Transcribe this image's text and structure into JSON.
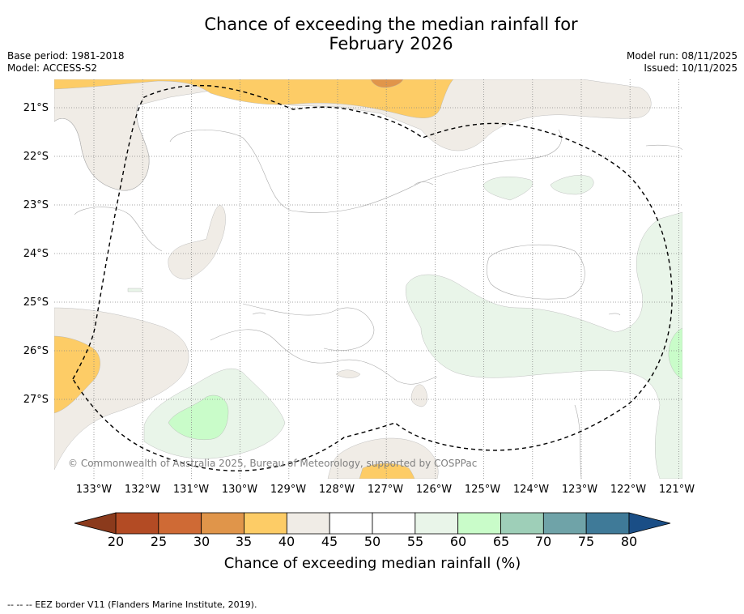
{
  "title": {
    "line1": "Chance of exceeding the median rainfall for",
    "line2": "February 2026"
  },
  "meta_left": {
    "base_period": "Base period: 1981-2018",
    "model": "Model: ACCESS-S2"
  },
  "meta_right": {
    "model_run": "Model run: 08/11/2025",
    "issued": "Issued: 10/11/2025"
  },
  "lat_labels": [
    "21°S",
    "22°S",
    "23°S",
    "24°S",
    "25°S",
    "26°S",
    "27°S"
  ],
  "lon_labels": [
    "133°W",
    "132°W",
    "131°W",
    "130°W",
    "129°W",
    "128°W",
    "127°W",
    "126°W",
    "125°W",
    "124°W",
    "123°W",
    "122°W",
    "121°W"
  ],
  "copyright": "© Commonwealth of Australia 2025, Bureau of Meteorology, supported by COSPPac",
  "colorbar": {
    "ticks": [
      "20",
      "25",
      "30",
      "35",
      "40",
      "45",
      "50",
      "55",
      "60",
      "65",
      "70",
      "75",
      "80"
    ],
    "colors": [
      "#b34b24",
      "#cf6a35",
      "#e0954a",
      "#fdcc66",
      "#f0ece6",
      "#ffffff",
      "#ffffff",
      "#e9f5e9",
      "#c9fcc9",
      "#9ecfb8",
      "#6fa3a8",
      "#3f7a98"
    ],
    "under_color": "#8b3a1c",
    "over_color": "#1a4e86",
    "label": "Chance of exceeding median rainfall (%)"
  },
  "map_colors": {
    "dry_light": "#f0ece6",
    "dry": "#fdcc66",
    "dry_strong": "#e0954a",
    "wet_light": "#e9f5e9",
    "wet": "#c9fcc9"
  },
  "footer": "--  --  -- EEZ border V11 (Flanders Marine Institute, 2019)."
}
